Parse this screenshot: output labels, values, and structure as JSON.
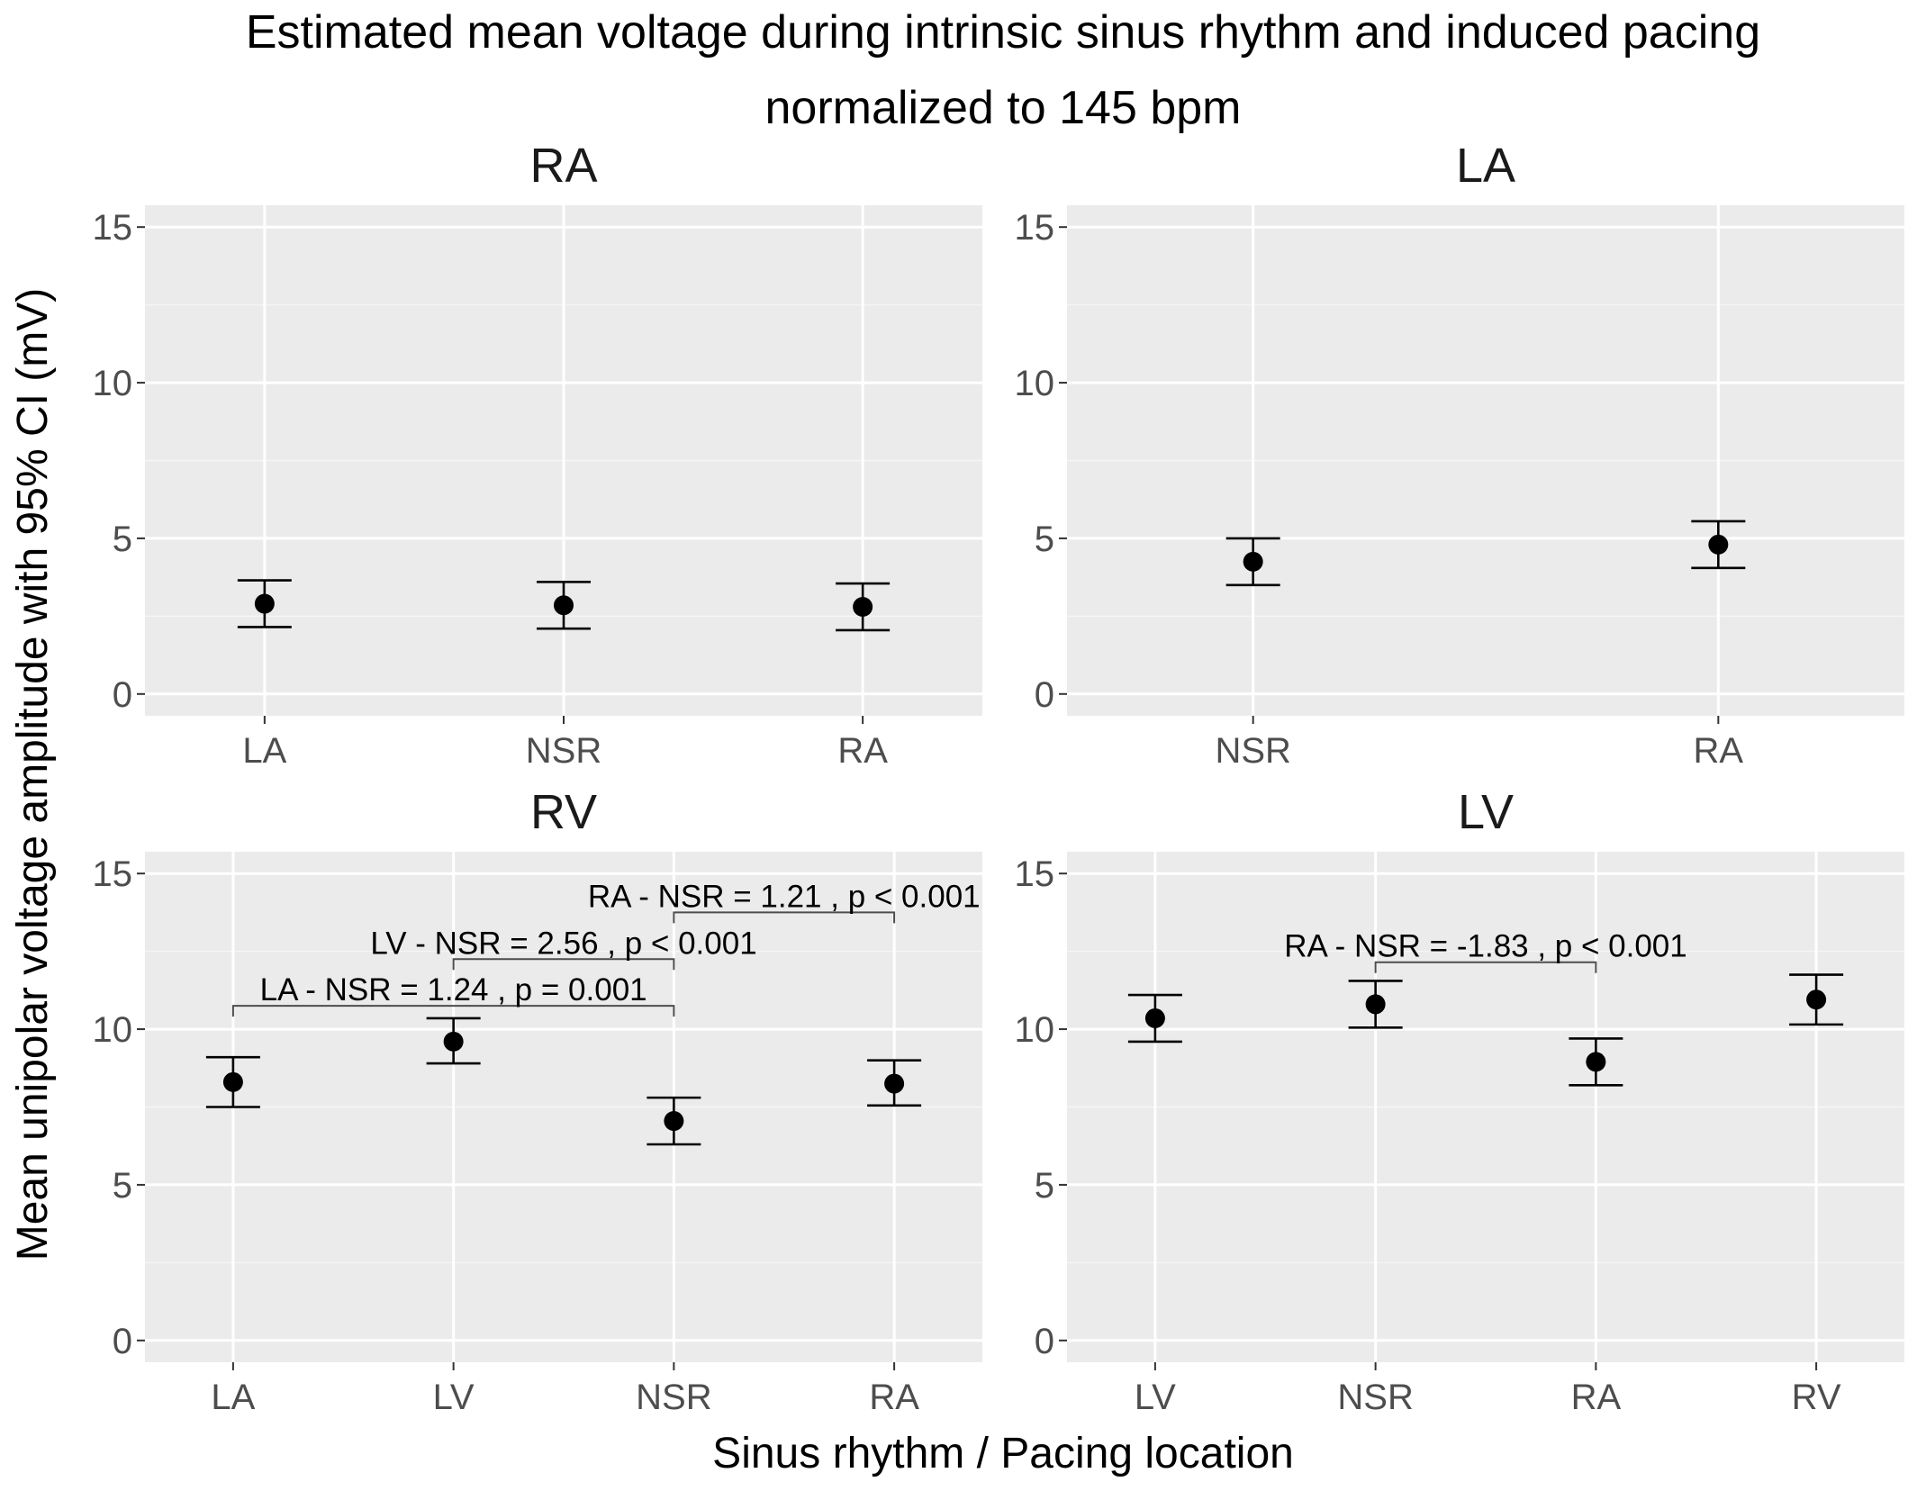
{
  "chart_data": {
    "type": "scatter",
    "title_lines": [
      "Estimated mean voltage during intrinsic sinus rhythm and induced pacing",
      "normalized to 145 bpm"
    ],
    "xlabel": "Sinus rhythm / Pacing location",
    "ylabel": "Mean unipolar voltage amplitude with 95% CI (mV)",
    "ylim": [
      -0.7,
      15.7
    ],
    "yticks": [
      0,
      5,
      10,
      15
    ],
    "grid": true,
    "panels": [
      {
        "strip": "RA",
        "categories": [
          "LA",
          "NSR",
          "RA"
        ],
        "points": [
          {
            "x": "LA",
            "y": 2.9,
            "lower": 2.15,
            "upper": 3.65
          },
          {
            "x": "NSR",
            "y": 2.85,
            "lower": 2.1,
            "upper": 3.6
          },
          {
            "x": "RA",
            "y": 2.8,
            "lower": 2.05,
            "upper": 3.55
          }
        ],
        "annotations": []
      },
      {
        "strip": "LA",
        "categories": [
          "NSR",
          "RA"
        ],
        "points": [
          {
            "x": "NSR",
            "y": 4.25,
            "lower": 3.5,
            "upper": 5.0
          },
          {
            "x": "RA",
            "y": 4.8,
            "lower": 4.05,
            "upper": 5.55
          }
        ],
        "annotations": []
      },
      {
        "strip": "RV",
        "categories": [
          "LA",
          "LV",
          "NSR",
          "RA"
        ],
        "points": [
          {
            "x": "LA",
            "y": 8.3,
            "lower": 7.5,
            "upper": 9.1
          },
          {
            "x": "LV",
            "y": 9.6,
            "lower": 8.9,
            "upper": 10.35
          },
          {
            "x": "NSR",
            "y": 7.05,
            "lower": 6.3,
            "upper": 7.8
          },
          {
            "x": "RA",
            "y": 8.25,
            "lower": 7.55,
            "upper": 9.0
          }
        ],
        "annotations": [
          {
            "from": "LA",
            "to": "NSR",
            "y": 10.75,
            "label": "LA - NSR = 1.24 , p = 0.001"
          },
          {
            "from": "LV",
            "to": "NSR",
            "y": 12.25,
            "label": "LV - NSR = 2.56 , p < 0.001"
          },
          {
            "from": "NSR",
            "to": "RA",
            "y": 13.75,
            "label": "RA - NSR = 1.21 , p < 0.001"
          }
        ]
      },
      {
        "strip": "LV",
        "categories": [
          "LV",
          "NSR",
          "RA",
          "RV"
        ],
        "points": [
          {
            "x": "LV",
            "y": 10.35,
            "lower": 9.6,
            "upper": 11.1
          },
          {
            "x": "NSR",
            "y": 10.8,
            "lower": 10.05,
            "upper": 11.55
          },
          {
            "x": "RA",
            "y": 8.95,
            "lower": 8.2,
            "upper": 9.7
          },
          {
            "x": "RV",
            "y": 10.95,
            "lower": 10.15,
            "upper": 11.75
          }
        ],
        "annotations": [
          {
            "from": "NSR",
            "to": "RA",
            "y": 12.15,
            "label": "RA - NSR = -1.83 , p < 0.001"
          }
        ]
      }
    ]
  }
}
